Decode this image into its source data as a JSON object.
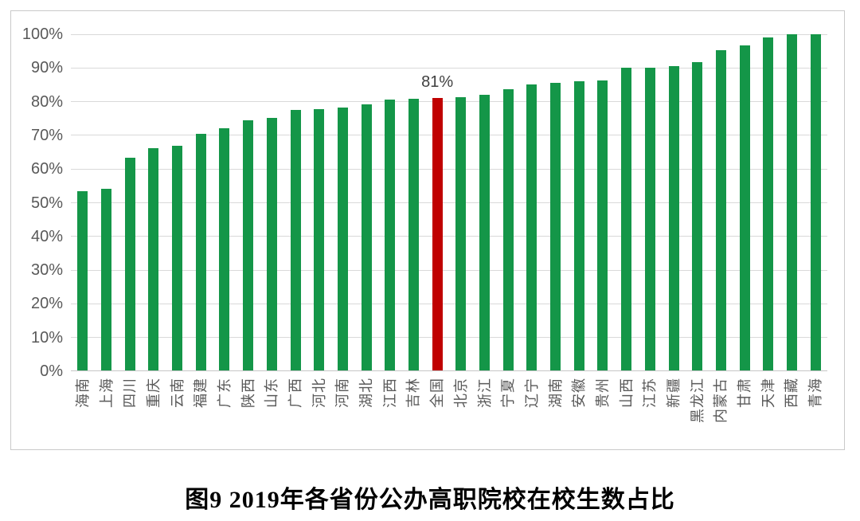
{
  "caption": "图9 2019年各省份公办高职院校在校生数占比",
  "chart_data": {
    "type": "bar",
    "title": "图9 2019年各省份公办高职院校在校生数占比",
    "xlabel": "",
    "ylabel": "",
    "ylim": [
      0,
      100
    ],
    "grid": true,
    "legend": false,
    "y_ticks": [
      "0%",
      "10%",
      "20%",
      "30%",
      "40%",
      "50%",
      "60%",
      "70%",
      "80%",
      "90%",
      "100%"
    ],
    "categories": [
      "海南",
      "上海",
      "四川",
      "重庆",
      "云南",
      "福建",
      "广东",
      "陕西",
      "山东",
      "广西",
      "河北",
      "河南",
      "湖北",
      "江西",
      "吉林",
      "全国",
      "北京",
      "浙江",
      "宁夏",
      "辽宁",
      "湖南",
      "安徽",
      "贵州",
      "山西",
      "江苏",
      "新疆",
      "黑龙江",
      "内蒙古",
      "甘肃",
      "天津",
      "西藏",
      "青海"
    ],
    "values": [
      53.5,
      54.1,
      63.4,
      66.2,
      66.8,
      70.4,
      72.1,
      74.4,
      75.2,
      77.5,
      77.8,
      78.2,
      79.2,
      80.6,
      80.8,
      81.0,
      81.4,
      82.1,
      83.7,
      85.2,
      85.6,
      86.0,
      86.3,
      90.0,
      90.0,
      90.5,
      91.7,
      95.3,
      96.6,
      99.0,
      100.0,
      100.0
    ],
    "highlight": {
      "category": "全国",
      "value_label": "81%"
    },
    "colors": {
      "bar": "#149648",
      "highlight_bar": "#c00000",
      "gridline": "#d9d9d9",
      "axis_line": "#c6c6c6",
      "tick_label": "#595959",
      "annotation": "#404040"
    }
  }
}
